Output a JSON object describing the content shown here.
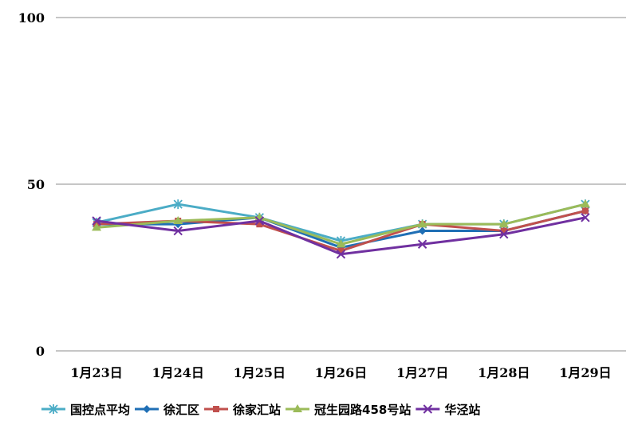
{
  "chart_data": {
    "type": "line",
    "categories": [
      "1月23日",
      "1月24日",
      "1月25日",
      "1月26日",
      "1月27日",
      "1月28日",
      "1月29日"
    ],
    "ylim": [
      0,
      100
    ],
    "yticks": [
      "0",
      "50",
      "100"
    ],
    "grid": true,
    "legend_position": "bottom",
    "series": [
      {
        "name": "国控点平均",
        "color": "#4bacc6",
        "marker": "star",
        "values": [
          38.5,
          44,
          40,
          33,
          38,
          38,
          44
        ]
      },
      {
        "name": "徐汇区",
        "color": "#1f6fb5",
        "marker": "diamond",
        "values": [
          38,
          38,
          40,
          31,
          36,
          36,
          42
        ]
      },
      {
        "name": "徐家汇站",
        "color": "#c0504d",
        "marker": "square",
        "values": [
          38,
          39,
          38,
          30,
          38,
          36,
          42
        ]
      },
      {
        "name": "冠生园路458号站",
        "color": "#9bbb59",
        "marker": "triangle",
        "values": [
          37,
          39,
          40,
          32,
          38,
          38,
          44
        ]
      },
      {
        "name": "华泾站",
        "color": "#7030a0",
        "marker": "x",
        "values": [
          39,
          36,
          39,
          29,
          32,
          35,
          40
        ]
      }
    ]
  }
}
